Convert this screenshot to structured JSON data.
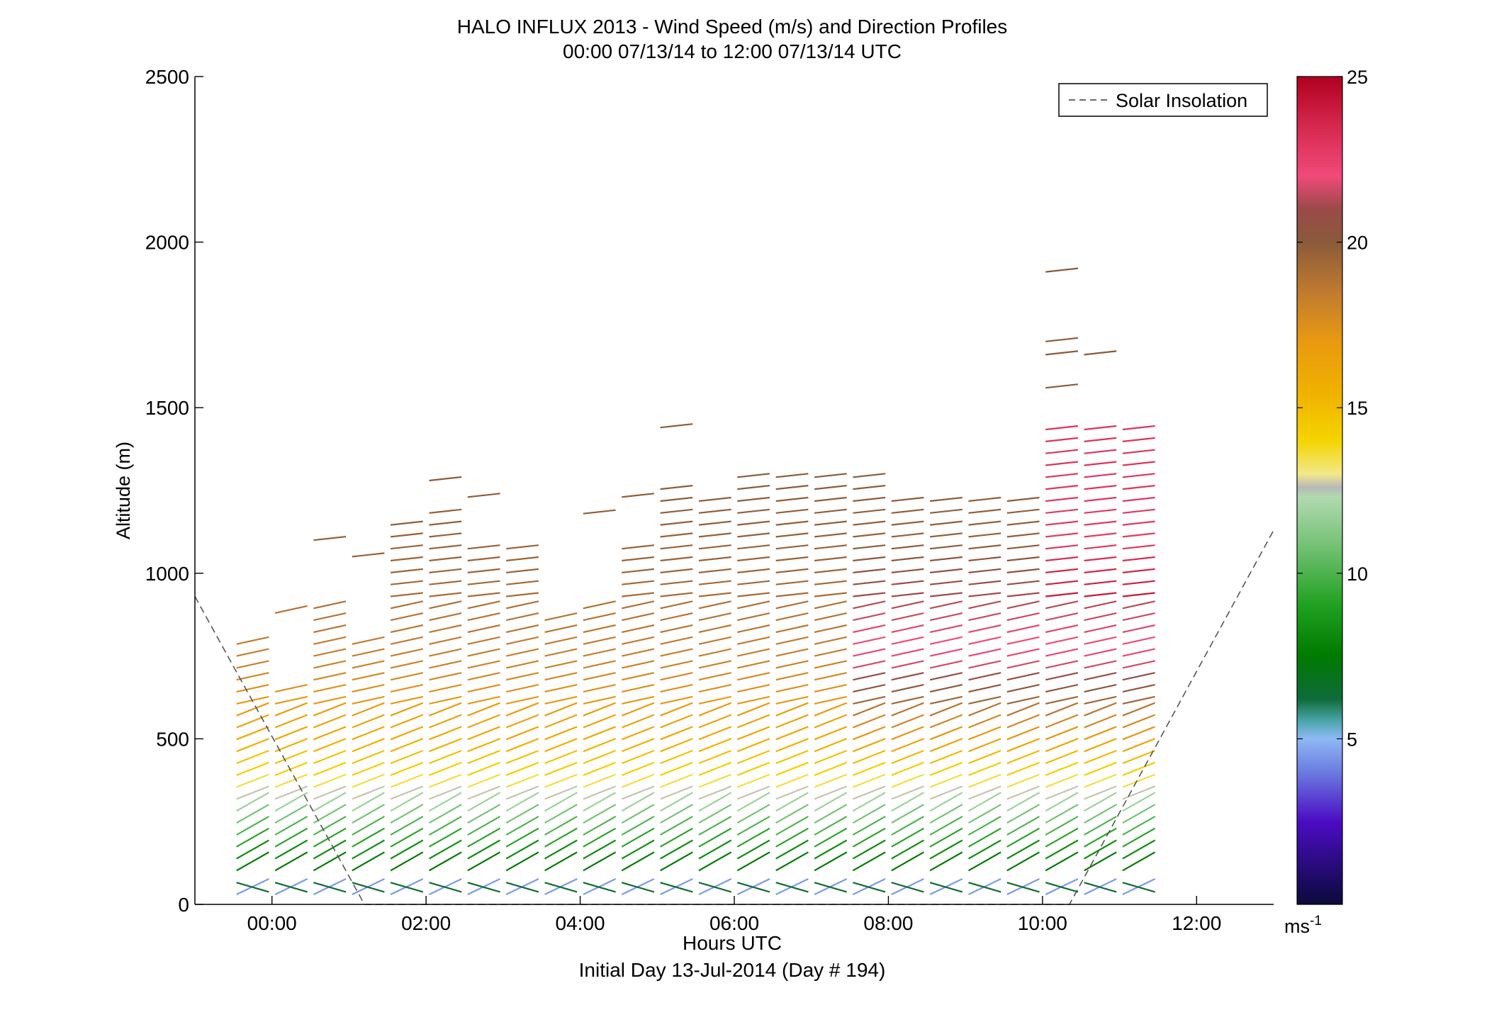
{
  "chart_data": {
    "type": "wind-profile",
    "title": "HALO INFLUX 2013 - Wind Speed (m/s) and Direction Profiles",
    "subtitle": "00:00 07/13/14 to 12:00 07/13/14  UTC",
    "xlabel": "Hours UTC",
    "xlabel2": "Initial Day 13-Jul-2014 (Day # 194)",
    "ylabel": "Altitude (m)",
    "xlim": [
      -1,
      13
    ],
    "ylim": [
      0,
      2500
    ],
    "x_ticks": [
      0,
      2,
      4,
      6,
      8,
      10,
      12
    ],
    "x_tick_labels": [
      "00:00",
      "02:00",
      "04:00",
      "06:00",
      "08:00",
      "10:00",
      "12:00"
    ],
    "y_ticks": [
      0,
      500,
      1000,
      1500,
      2000,
      2500
    ],
    "y_tick_labels": [
      "0",
      "500",
      "1000",
      "1500",
      "2000",
      "2500"
    ],
    "colorbar": {
      "range": [
        0,
        25
      ],
      "ticks": [
        5,
        10,
        15,
        20,
        25
      ],
      "tick_labels": [
        "5",
        "10",
        "15",
        "20",
        "25"
      ],
      "unit": "ms",
      "unit_exp": "-1",
      "stops": [
        {
          "v": 0,
          "color": "#0a0a3a"
        },
        {
          "v": 2.5,
          "color": "#4b0cc4"
        },
        {
          "v": 4,
          "color": "#6a7ce0"
        },
        {
          "v": 5,
          "color": "#8fb8f5"
        },
        {
          "v": 5.5,
          "color": "#4fa8b0"
        },
        {
          "v": 6.2,
          "color": "#0f6b3a"
        },
        {
          "v": 7.5,
          "color": "#007a00"
        },
        {
          "v": 9,
          "color": "#1fa01f"
        },
        {
          "v": 11,
          "color": "#7cc47c"
        },
        {
          "v": 12.3,
          "color": "#b0dab0"
        },
        {
          "v": 12.6,
          "color": "#b8b8b8"
        },
        {
          "v": 13,
          "color": "#f2e98a"
        },
        {
          "v": 14,
          "color": "#f5d400"
        },
        {
          "v": 15.5,
          "color": "#f0b000"
        },
        {
          "v": 17,
          "color": "#e89a10"
        },
        {
          "v": 18.5,
          "color": "#c07a30"
        },
        {
          "v": 20,
          "color": "#8b5a3a"
        },
        {
          "v": 21,
          "color": "#9a4a48"
        },
        {
          "v": 22,
          "color": "#f04a7a"
        },
        {
          "v": 23.5,
          "color": "#d6284e"
        },
        {
          "v": 25,
          "color": "#b00020"
        }
      ]
    },
    "legend": {
      "label": "Solar Insolation",
      "location": "top-right",
      "style": "dashed",
      "color": "#555555"
    },
    "solar_insolation": [
      {
        "x": -1,
        "y": 930
      },
      {
        "x": 1.2,
        "y": 0
      },
      {
        "x": 10.35,
        "y": 0
      },
      {
        "x": 13,
        "y": 1130
      }
    ],
    "profiles": [
      {
        "time": -0.25,
        "top": 800,
        "extra": []
      },
      {
        "time": 0.25,
        "top": 660,
        "extra": [
          880
        ]
      },
      {
        "time": 0.75,
        "top": 900,
        "extra": [
          1100
        ]
      },
      {
        "time": 1.25,
        "top": 820,
        "extra": [
          1050
        ]
      },
      {
        "time": 1.75,
        "top": 1150,
        "extra": []
      },
      {
        "time": 2.25,
        "top": 1200,
        "extra": [
          1280
        ]
      },
      {
        "time": 2.75,
        "top": 1100,
        "extra": [
          1230
        ]
      },
      {
        "time": 3.25,
        "top": 1080,
        "extra": []
      },
      {
        "time": 3.75,
        "top": 860,
        "extra": []
      },
      {
        "time": 4.25,
        "top": 920,
        "extra": [
          1180
        ]
      },
      {
        "time": 4.75,
        "top": 1100,
        "extra": [
          1230
        ]
      },
      {
        "time": 5.25,
        "top": 1280,
        "extra": [
          1440
        ]
      },
      {
        "time": 5.75,
        "top": 1230,
        "extra": []
      },
      {
        "time": 6.25,
        "top": 1320,
        "extra": []
      },
      {
        "time": 6.75,
        "top": 1320,
        "extra": []
      },
      {
        "time": 7.25,
        "top": 1290,
        "extra": []
      },
      {
        "time": 7.75,
        "top": 1290,
        "extra": []
      },
      {
        "time": 8.25,
        "top": 1240,
        "extra": []
      },
      {
        "time": 8.75,
        "top": 1240,
        "extra": []
      },
      {
        "time": 9.25,
        "top": 1240,
        "extra": []
      },
      {
        "time": 9.75,
        "top": 1240,
        "extra": []
      },
      {
        "time": 10.25,
        "top": 1460,
        "extra": [
          1560,
          1660,
          1700,
          1910
        ]
      },
      {
        "time": 10.75,
        "top": 1460,
        "extra": [
          1660
        ]
      },
      {
        "time": 11.25,
        "top": 1460,
        "extra": []
      }
    ],
    "speed_profile_by_altitude": [
      {
        "alt": 0,
        "speed": 3
      },
      {
        "alt": 80,
        "speed": 7
      },
      {
        "alt": 250,
        "speed": 11
      },
      {
        "alt": 350,
        "speed": 13.5
      },
      {
        "alt": 500,
        "speed": 16
      },
      {
        "alt": 700,
        "speed": 18
      },
      {
        "alt": 1000,
        "speed": 19.5
      },
      {
        "alt": 1300,
        "speed": 20
      }
    ],
    "afternoon_jet": {
      "start_time": 7.5,
      "alt_center": 750,
      "alt_width": 350,
      "boost": 4
    },
    "late_jet": {
      "start_time": 9.8,
      "alt_top": 1500,
      "boost": 3
    }
  }
}
